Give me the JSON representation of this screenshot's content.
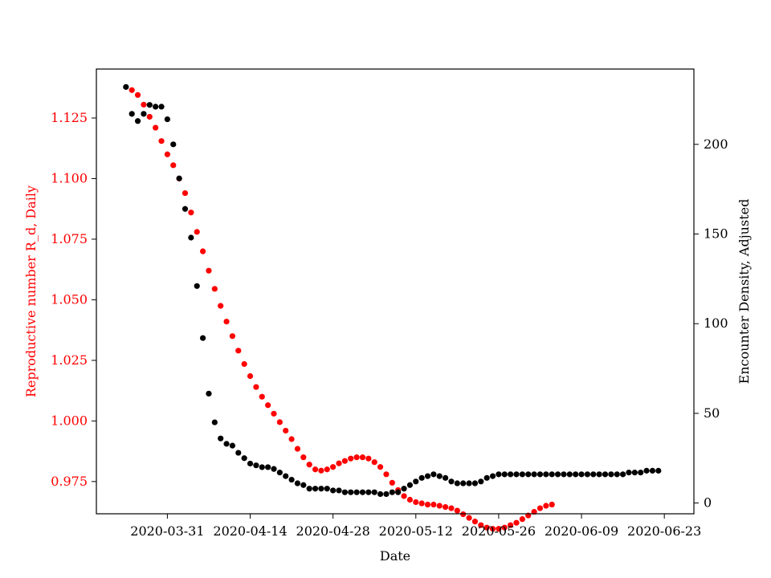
{
  "chart_data": {
    "type": "scatter",
    "xlabel": "Date",
    "x_ticks": [
      "2020-03-31",
      "2020-04-14",
      "2020-04-28",
      "2020-05-12",
      "2020-05-26",
      "2020-06-09",
      "2020-06-23"
    ],
    "xlim": [
      "2020-03-19",
      "2020-06-28"
    ],
    "y_left": {
      "label": "Reproductive number R_d, Daily",
      "color": "#ff0000",
      "ylim": [
        0.9617,
        1.1452
      ],
      "ticks": [
        "0.975",
        "1.000",
        "1.025",
        "1.050",
        "1.075",
        "1.100",
        "1.125"
      ]
    },
    "y_right": {
      "label": "Encounter Density, Adjusted",
      "color": "#000000",
      "ylim": [
        -6,
        242
      ],
      "ticks": [
        "0",
        "50",
        "100",
        "150",
        "200"
      ]
    },
    "grid": false,
    "legend": "none",
    "series": [
      {
        "axis": "left",
        "color": "#ff0000",
        "x": [
          "2020-03-25",
          "2020-03-26",
          "2020-03-27",
          "2020-03-28",
          "2020-03-29",
          "2020-03-30",
          "2020-03-31",
          "2020-04-01",
          "2020-04-02",
          "2020-04-03",
          "2020-04-04",
          "2020-04-05",
          "2020-04-06",
          "2020-04-07",
          "2020-04-08",
          "2020-04-09",
          "2020-04-10",
          "2020-04-11",
          "2020-04-12",
          "2020-04-13",
          "2020-04-14",
          "2020-04-15",
          "2020-04-16",
          "2020-04-17",
          "2020-04-18",
          "2020-04-19",
          "2020-04-20",
          "2020-04-21",
          "2020-04-22",
          "2020-04-23",
          "2020-04-24",
          "2020-04-25",
          "2020-04-26",
          "2020-04-27",
          "2020-04-28",
          "2020-04-29",
          "2020-04-30",
          "2020-05-01",
          "2020-05-02",
          "2020-05-03",
          "2020-05-04",
          "2020-05-05",
          "2020-05-06",
          "2020-05-07",
          "2020-05-08",
          "2020-05-09",
          "2020-05-10",
          "2020-05-11",
          "2020-05-12",
          "2020-05-13",
          "2020-05-14",
          "2020-05-15",
          "2020-05-16",
          "2020-05-17",
          "2020-05-18",
          "2020-05-19",
          "2020-05-20",
          "2020-05-21",
          "2020-05-22",
          "2020-05-23",
          "2020-05-24",
          "2020-05-25",
          "2020-05-26",
          "2020-05-27",
          "2020-05-28",
          "2020-05-29",
          "2020-05-30",
          "2020-05-31",
          "2020-06-01",
          "2020-06-02",
          "2020-06-03",
          "2020-06-04"
        ],
        "y": [
          1.1365,
          1.1345,
          1.1305,
          1.1255,
          1.121,
          1.1155,
          1.11,
          1.1055,
          1.1,
          1.094,
          1.086,
          1.078,
          1.07,
          1.062,
          1.0545,
          1.0475,
          1.041,
          1.035,
          1.029,
          1.0235,
          1.0185,
          1.014,
          1.01,
          1.0065,
          1.003,
          0.9995,
          0.996,
          0.9925,
          0.9885,
          0.985,
          0.982,
          0.98,
          0.9795,
          0.98,
          0.981,
          0.9825,
          0.9835,
          0.9845,
          0.985,
          0.985,
          0.9845,
          0.983,
          0.981,
          0.978,
          0.9745,
          0.9715,
          0.969,
          0.9675,
          0.9665,
          0.966,
          0.9655,
          0.9655,
          0.965,
          0.9645,
          0.964,
          0.963,
          0.9615,
          0.96,
          0.9585,
          0.957,
          0.956,
          0.9555,
          0.9555,
          0.956,
          0.957,
          0.958,
          0.9595,
          0.961,
          0.9625,
          0.964,
          0.965,
          0.9655
        ]
      },
      {
        "axis": "right",
        "color": "#000000",
        "x": [
          "2020-03-24",
          "2020-03-25",
          "2020-03-26",
          "2020-03-27",
          "2020-03-28",
          "2020-03-29",
          "2020-03-30",
          "2020-03-31",
          "2020-04-01",
          "2020-04-02",
          "2020-04-03",
          "2020-04-04",
          "2020-04-05",
          "2020-04-06",
          "2020-04-07",
          "2020-04-08",
          "2020-04-09",
          "2020-04-10",
          "2020-04-11",
          "2020-04-12",
          "2020-04-13",
          "2020-04-14",
          "2020-04-15",
          "2020-04-16",
          "2020-04-17",
          "2020-04-18",
          "2020-04-19",
          "2020-04-20",
          "2020-04-21",
          "2020-04-22",
          "2020-04-23",
          "2020-04-24",
          "2020-04-25",
          "2020-04-26",
          "2020-04-27",
          "2020-04-28",
          "2020-04-29",
          "2020-04-30",
          "2020-05-01",
          "2020-05-02",
          "2020-05-03",
          "2020-05-04",
          "2020-05-05",
          "2020-05-06",
          "2020-05-07",
          "2020-05-08",
          "2020-05-09",
          "2020-05-10",
          "2020-05-11",
          "2020-05-12",
          "2020-05-13",
          "2020-05-14",
          "2020-05-15",
          "2020-05-16",
          "2020-05-17",
          "2020-05-18",
          "2020-05-19",
          "2020-05-20",
          "2020-05-21",
          "2020-05-22",
          "2020-05-23",
          "2020-05-24",
          "2020-05-25",
          "2020-05-26",
          "2020-05-27",
          "2020-05-28",
          "2020-05-29",
          "2020-05-30",
          "2020-05-31",
          "2020-06-01",
          "2020-06-02",
          "2020-06-03",
          "2020-06-04",
          "2020-06-05",
          "2020-06-06",
          "2020-06-07",
          "2020-06-08",
          "2020-06-09",
          "2020-06-10",
          "2020-06-11",
          "2020-06-12",
          "2020-06-13",
          "2020-06-14",
          "2020-06-15",
          "2020-06-16",
          "2020-06-17",
          "2020-06-18",
          "2020-06-19",
          "2020-06-20",
          "2020-06-21",
          "2020-06-22"
        ],
        "y": [
          232,
          217,
          213,
          217,
          222,
          221,
          221,
          214,
          200,
          181,
          164,
          148,
          121,
          92,
          61,
          45,
          36,
          33,
          32,
          28,
          25,
          22,
          21,
          20,
          20,
          19,
          17,
          15,
          13,
          11,
          10,
          8,
          8,
          8,
          8,
          7,
          7,
          6,
          6,
          6,
          6,
          6,
          6,
          5,
          5,
          6,
          6,
          8,
          10,
          12,
          14,
          15,
          16,
          15,
          14,
          12,
          11,
          11,
          11,
          11,
          12,
          14,
          15,
          16,
          16,
          16,
          16,
          16,
          16,
          16,
          16,
          16,
          16,
          16,
          16,
          16,
          16,
          16,
          16,
          16,
          16,
          16,
          16,
          16,
          16,
          17,
          17,
          17,
          18,
          18,
          18
        ]
      }
    ]
  }
}
